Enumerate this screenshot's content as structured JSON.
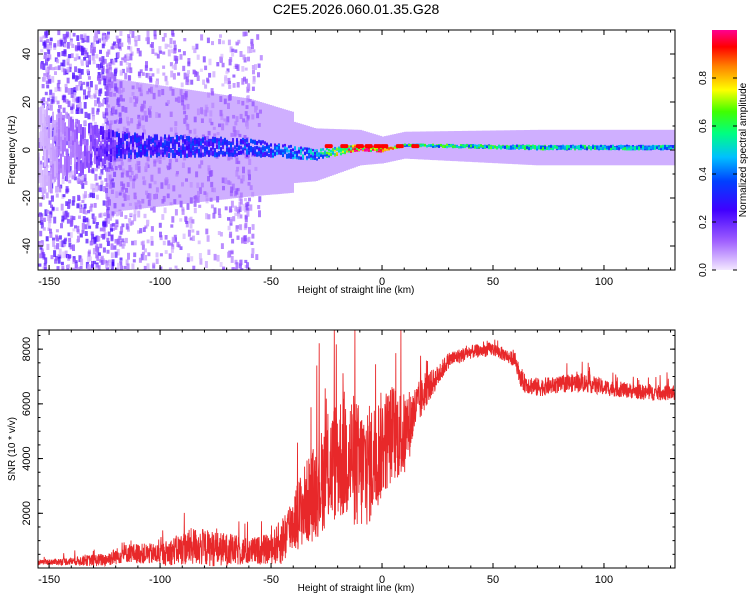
{
  "title": "C2E5.2026.060.01.35.G28",
  "chart_data": [
    {
      "type": "heatmap",
      "xlabel": "Height of straight line (km)",
      "ylabel": "Frequency (Hz)",
      "xlim": [
        -155,
        132
      ],
      "ylim": [
        -50,
        50
      ],
      "xticks": [
        -150,
        -100,
        -50,
        0,
        50,
        100
      ],
      "yticks": [
        -40,
        -20,
        0,
        20,
        40
      ],
      "colorbar": {
        "label": "Normalized spectral amplitude",
        "range": [
          0,
          1
        ],
        "ticks": [
          "0.0",
          "0.2",
          "0.4",
          "0.6",
          "0.8"
        ],
        "colors": [
          "#f0e0ff",
          "#7a00ff",
          "#0000ff",
          "#00c0ff",
          "#00ff60",
          "#ffff00",
          "#ff8000",
          "#ff0000",
          "#ff0080"
        ]
      },
      "band": [
        {
          "x": -155,
          "center": 0,
          "halfwidth": 40,
          "amplitude": 0.05
        },
        {
          "x": -120,
          "center": 2,
          "halfwidth": 12,
          "amplitude": 0.3
        },
        {
          "x": -60,
          "center": 1,
          "halfwidth": 8,
          "amplitude": 0.35
        },
        {
          "x": -30,
          "center": -2,
          "halfwidth": 5,
          "amplitude": 0.45
        },
        {
          "x": -10,
          "center": 1,
          "halfwidth": 3,
          "amplitude": 0.95
        },
        {
          "x": 0,
          "center": 0,
          "halfwidth": 2,
          "amplitude": 0.95
        },
        {
          "x": 10,
          "center": 2,
          "halfwidth": 2,
          "amplitude": 0.6
        },
        {
          "x": 70,
          "center": 1,
          "halfwidth": 3,
          "amplitude": 0.55
        },
        {
          "x": 132,
          "center": 1,
          "halfwidth": 3,
          "amplitude": 0.5
        }
      ]
    },
    {
      "type": "line",
      "xlabel": "Height of straight line (km)",
      "ylabel": "SNR (10 * v/v)",
      "xlim": [
        -155,
        132
      ],
      "ylim": [
        0,
        8700
      ],
      "xticks": [
        -150,
        -100,
        -50,
        0,
        50,
        100
      ],
      "yticks": [
        2000,
        4000,
        6000,
        8000
      ],
      "series": [
        {
          "name": "SNR",
          "color": "#e8282a",
          "x": [
            -155,
            -140,
            -125,
            -115,
            -100,
            -85,
            -75,
            -60,
            -50,
            -45,
            -40,
            -35,
            -30,
            -25,
            -20,
            -15,
            -10,
            -5,
            0,
            5,
            10,
            15,
            20,
            25,
            30,
            40,
            50,
            55,
            60,
            63,
            70,
            80,
            90,
            100,
            110,
            120,
            132
          ],
          "y": [
            200,
            250,
            300,
            550,
            500,
            800,
            700,
            600,
            700,
            1000,
            1700,
            2300,
            2800,
            3500,
            4000,
            4200,
            3600,
            3800,
            4500,
            5000,
            4800,
            5800,
            6500,
            7000,
            7600,
            7900,
            8000,
            7800,
            7600,
            6800,
            6600,
            6700,
            6800,
            6600,
            6500,
            6400,
            6400
          ],
          "noise": [
            80,
            150,
            250,
            350,
            400,
            700,
            650,
            500,
            550,
            900,
            1100,
            1500,
            1800,
            2000,
            2300,
            2500,
            2400,
            2200,
            2000,
            1800,
            1600,
            900,
            600,
            400,
            300,
            250,
            250,
            250,
            250,
            350,
            350,
            300,
            350,
            300,
            280,
            280,
            280
          ]
        }
      ]
    }
  ]
}
